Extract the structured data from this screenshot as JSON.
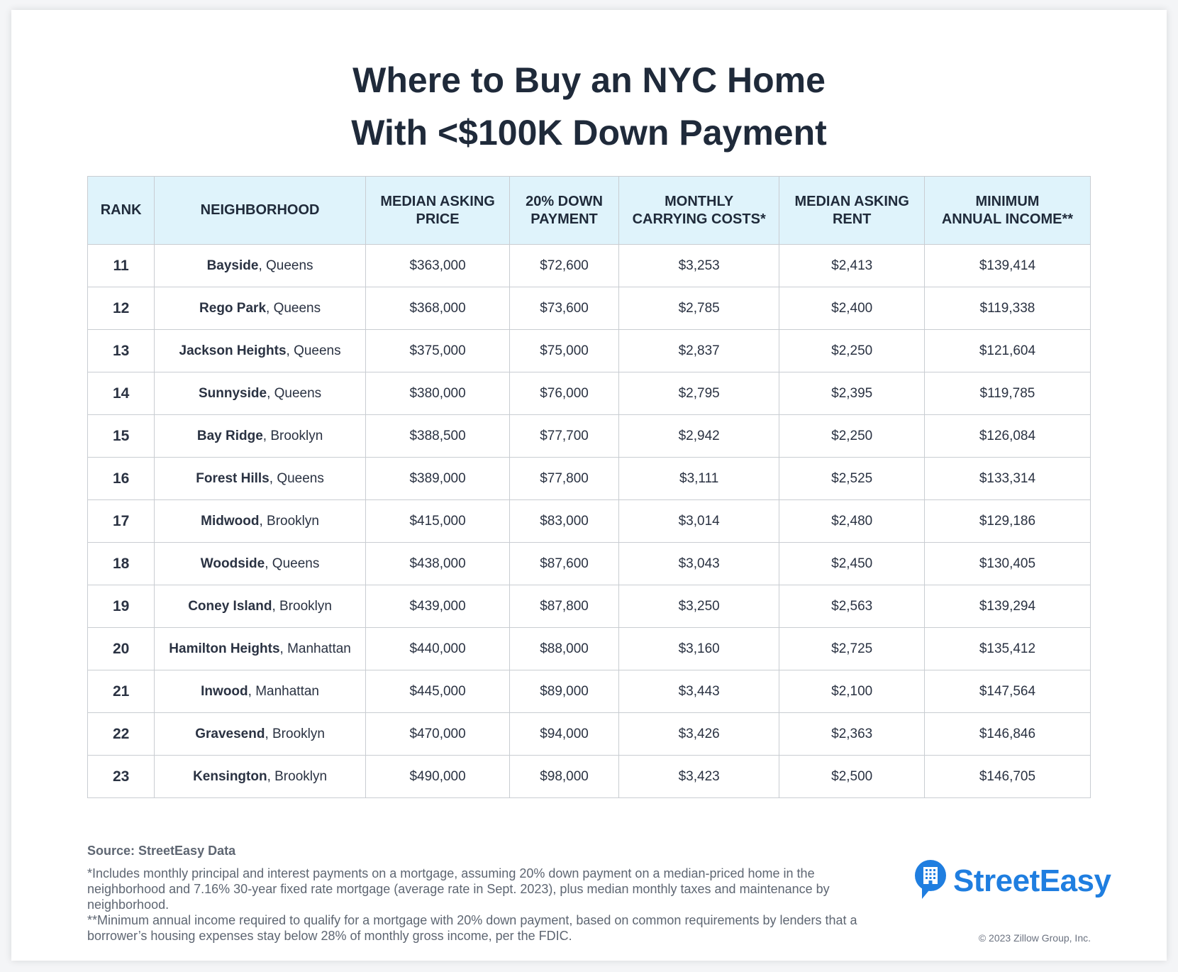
{
  "title": {
    "line1": "Where to Buy an NYC Home",
    "line2": "With <$100K Down Payment"
  },
  "table": {
    "headers": [
      {
        "line1": "RANK",
        "line2": ""
      },
      {
        "line1": "NEIGHBORHOOD",
        "line2": ""
      },
      {
        "line1": "MEDIAN ASKING",
        "line2": "PRICE"
      },
      {
        "line1": "20% DOWN",
        "line2": "PAYMENT"
      },
      {
        "line1": "MONTHLY",
        "line2": "CARRYING COSTS*"
      },
      {
        "line1": "MEDIAN ASKING",
        "line2": "RENT"
      },
      {
        "line1": "MINIMUM",
        "line2": "ANNUAL INCOME**"
      }
    ],
    "rows": [
      {
        "rank": "11",
        "name": "Bayside",
        "borough": ", Queens",
        "price": "$363,000",
        "down": "$72,600",
        "carrying": "$3,253",
        "rent": "$2,413",
        "income": "$139,414"
      },
      {
        "rank": "12",
        "name": "Rego Park",
        "borough": ", Queens",
        "price": "$368,000",
        "down": "$73,600",
        "carrying": "$2,785",
        "rent": "$2,400",
        "income": "$119,338"
      },
      {
        "rank": "13",
        "name": "Jackson Heights",
        "borough": ", Queens",
        "price": "$375,000",
        "down": "$75,000",
        "carrying": "$2,837",
        "rent": "$2,250",
        "income": "$121,604"
      },
      {
        "rank": "14",
        "name": "Sunnyside",
        "borough": ", Queens",
        "price": "$380,000",
        "down": "$76,000",
        "carrying": "$2,795",
        "rent": "$2,395",
        "income": "$119,785"
      },
      {
        "rank": "15",
        "name": "Bay Ridge",
        "borough": ", Brooklyn",
        "price": "$388,500",
        "down": "$77,700",
        "carrying": "$2,942",
        "rent": "$2,250",
        "income": "$126,084"
      },
      {
        "rank": "16",
        "name": "Forest Hills",
        "borough": ", Queens",
        "price": "$389,000",
        "down": "$77,800",
        "carrying": "$3,111",
        "rent": "$2,525",
        "income": "$133,314"
      },
      {
        "rank": "17",
        "name": "Midwood",
        "borough": ", Brooklyn",
        "price": "$415,000",
        "down": "$83,000",
        "carrying": "$3,014",
        "rent": "$2,480",
        "income": "$129,186"
      },
      {
        "rank": "18",
        "name": "Woodside",
        "borough": ", Queens",
        "price": "$438,000",
        "down": "$87,600",
        "carrying": "$3,043",
        "rent": "$2,450",
        "income": "$130,405"
      },
      {
        "rank": "19",
        "name": "Coney Island",
        "borough": ", Brooklyn",
        "price": "$439,000",
        "down": "$87,800",
        "carrying": "$3,250",
        "rent": "$2,563",
        "income": "$139,294"
      },
      {
        "rank": "20",
        "name": "Hamilton Heights",
        "borough": ", Manhattan",
        "price": "$440,000",
        "down": "$88,000",
        "carrying": "$3,160",
        "rent": "$2,725",
        "income": "$135,412"
      },
      {
        "rank": "21",
        "name": "Inwood",
        "borough": ", Manhattan",
        "price": "$445,000",
        "down": "$89,000",
        "carrying": "$3,443",
        "rent": "$2,100",
        "income": "$147,564"
      },
      {
        "rank": "22",
        "name": "Gravesend",
        "borough": ", Brooklyn",
        "price": "$470,000",
        "down": "$94,000",
        "carrying": "$3,426",
        "rent": "$2,363",
        "income": "$146,846"
      },
      {
        "rank": "23",
        "name": "Kensington",
        "borough": ", Brooklyn",
        "price": "$490,000",
        "down": "$98,000",
        "carrying": "$3,423",
        "rent": "$2,500",
        "income": "$146,705"
      }
    ]
  },
  "footer": {
    "source": "Source: StreetEasy Data",
    "note1": "*Includes monthly principal and interest payments on a mortgage, assuming 20% down payment on a median-priced home in the neighborhood and 7.16% 30-year fixed rate mortgage (average rate in Sept. 2023), plus median monthly taxes and maintenance by neighborhood.",
    "note2": "**Minimum annual income required to qualify for a mortgage with 20% down payment, based on common requirements by lenders that a borrower’s housing expenses stay below 28% of monthly gross income, per the FDIC.",
    "copyright": "© 2023 Zillow Group, Inc."
  },
  "logo": {
    "text": "StreetEasy",
    "icon": "building-speech-bubble-icon",
    "color": "#1f7ee0"
  },
  "colors": {
    "header_bg": "#dff3fb",
    "title": "#1f2a3a"
  }
}
